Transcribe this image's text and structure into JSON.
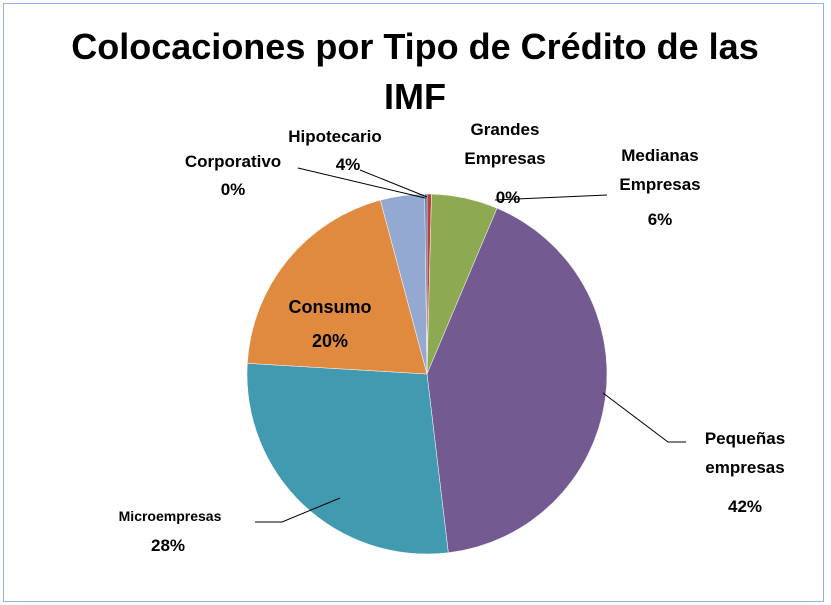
{
  "chart_data": {
    "type": "pie",
    "title": "Colocaciones por Tipo de Crédito de las IMF",
    "categories": [
      "Grandes Empresas",
      "Medianas Empresas",
      "Pequeñas empresas",
      "Microempresas",
      "Consumo",
      "Hipotecario",
      "Corporativo"
    ],
    "values": [
      0.4,
      6,
      42,
      28,
      20,
      4,
      0.2
    ],
    "value_labels": [
      "0%",
      "6%",
      "42%",
      "28%",
      "20%",
      "4%",
      "0%"
    ],
    "colors": [
      "#b8413e",
      "#8daa52",
      "#735a91",
      "#429ab0",
      "#e08a40",
      "#93a9d1",
      "#4f6fa8"
    ]
  }
}
